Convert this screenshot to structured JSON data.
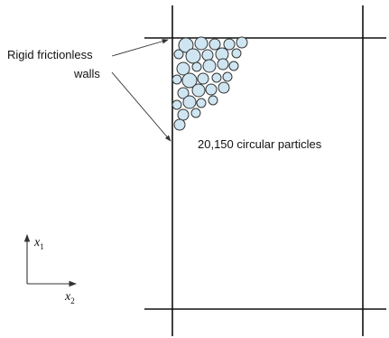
{
  "annotations": {
    "walls_line1": "Rigid frictionless",
    "walls_line2": "walls",
    "particles": "20,150 circular particles"
  },
  "axes": {
    "vertical_var": "x",
    "vertical_sub": "1",
    "horizontal_var": "x",
    "horizontal_sub": "2"
  },
  "colors": {
    "particle_fill": "#cfe6f2",
    "line": "#111111"
  },
  "icons": {
    "particles": "circle-packing-icon",
    "arrows": "arrow-icon"
  }
}
